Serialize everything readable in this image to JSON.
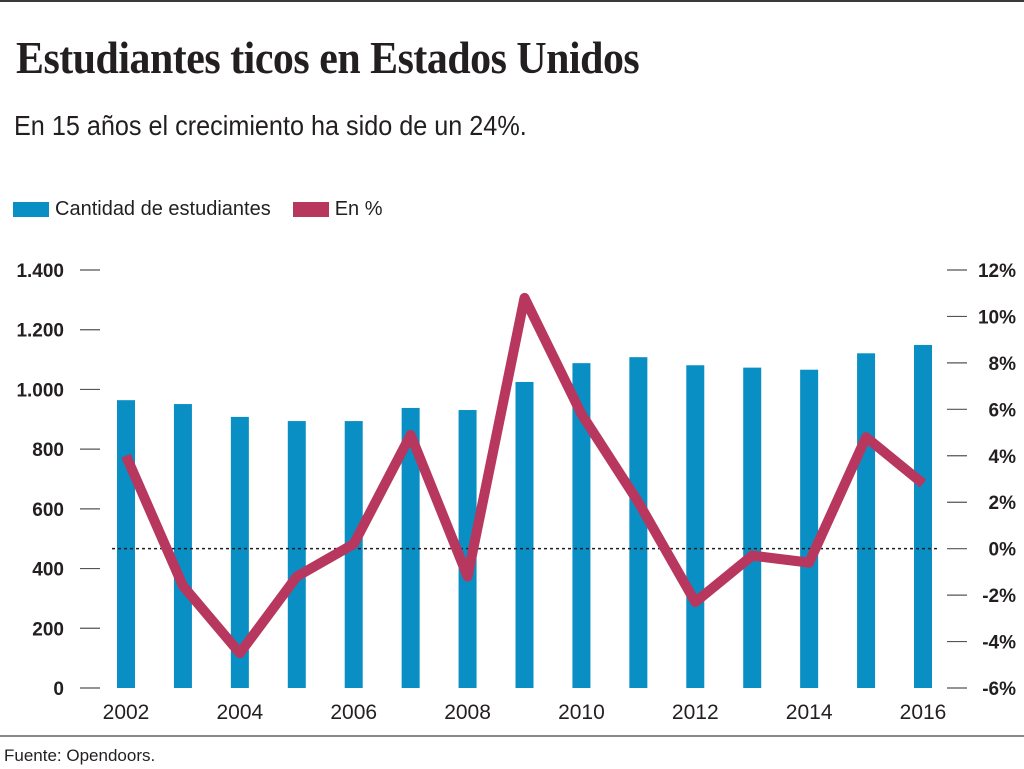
{
  "header": {
    "title": "Estudiantes ticos en Estados Unidos",
    "subtitle": "En 15 años el crecimiento ha sido de un 24%."
  },
  "legend": [
    {
      "label": "Cantidad de estudiantes",
      "color": "#0a8fc4"
    },
    {
      "label": "En %",
      "color": "#b8375f"
    }
  ],
  "footer": {
    "source": "Fuente: Opendoors."
  },
  "chart_data": {
    "type": "bar+line",
    "title": "Estudiantes ticos en Estados Unidos",
    "subtitle": "En 15 años el crecimiento ha sido de un 24%.",
    "x": [
      2002,
      2003,
      2004,
      2005,
      2006,
      2007,
      2008,
      2009,
      2010,
      2011,
      2012,
      2013,
      2014,
      2015,
      2016
    ],
    "x_tick_labels": [
      "2002",
      "2004",
      "2006",
      "2008",
      "2010",
      "2012",
      "2014",
      "2016"
    ],
    "x_tick_values": [
      2002,
      2004,
      2006,
      2008,
      2010,
      2012,
      2014,
      2016
    ],
    "series": [
      {
        "name": "Cantidad de estudiantes",
        "type": "bar",
        "axis": "left",
        "color": "#0a8fc4",
        "values": [
          964,
          951,
          908,
          894,
          894,
          938,
          931,
          1025,
          1088,
          1108,
          1081,
          1073,
          1066,
          1121,
          1149
        ]
      },
      {
        "name": "En %",
        "type": "line",
        "axis": "right",
        "color": "#b8375f",
        "values": [
          4.0,
          -1.6,
          -4.5,
          -1.2,
          0.2,
          4.9,
          -1.2,
          10.8,
          5.8,
          2.0,
          -2.3,
          -0.3,
          -0.6,
          4.8,
          2.8
        ]
      }
    ],
    "y_left": {
      "range": [
        0,
        1400
      ],
      "ticks": [
        0,
        200,
        400,
        600,
        800,
        1000,
        1200,
        1400
      ],
      "tick_labels": [
        "0",
        "200",
        "400",
        "600",
        "800",
        "1.000",
        "1.200",
        "1.400"
      ]
    },
    "y_right": {
      "range": [
        -6,
        12
      ],
      "ticks": [
        -6,
        -4,
        -2,
        0,
        2,
        4,
        6,
        8,
        10,
        12
      ],
      "tick_labels": [
        "-6%",
        "-4%",
        "-2%",
        "0%",
        "2%",
        "4%",
        "6%",
        "8%",
        "10%",
        "12%"
      ]
    },
    "reference_line": {
      "axis": "right",
      "value": 0,
      "style": "dotted"
    },
    "grid": false,
    "legend_position": "top-left",
    "xlabel": "",
    "ylabel": ""
  }
}
